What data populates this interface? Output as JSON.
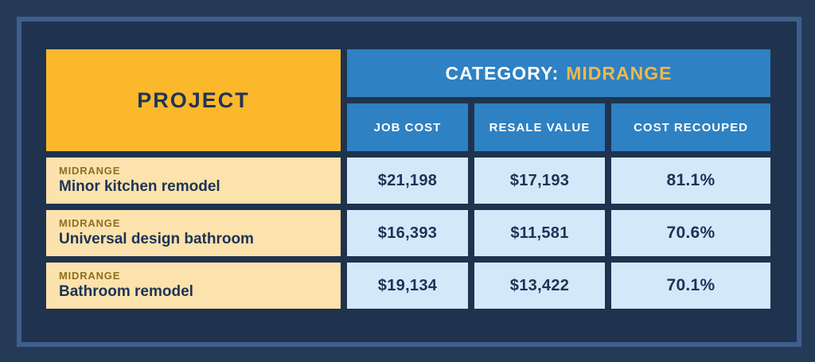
{
  "table": {
    "project_header": "PROJECT",
    "category": {
      "prefix": "CATEGORY:",
      "value": "MIDRANGE"
    },
    "columns": [
      "JOB COST",
      "RESALE VALUE",
      "COST RECOUPED"
    ],
    "rows": [
      {
        "category": "MIDRANGE",
        "project": "Minor kitchen remodel",
        "job_cost": "$21,198",
        "resale_value": "$17,193",
        "cost_recouped": "81.1%"
      },
      {
        "category": "MIDRANGE",
        "project": "Universal design bathroom",
        "job_cost": "$16,393",
        "resale_value": "$11,581",
        "cost_recouped": "70.6%"
      },
      {
        "category": "MIDRANGE",
        "project": "Bathroom remodel",
        "job_cost": "$19,134",
        "resale_value": "$13,422",
        "cost_recouped": "70.1%"
      }
    ]
  },
  "chart_data": {
    "type": "table",
    "title": "CATEGORY: MIDRANGE",
    "columns": [
      "PROJECT",
      "JOB COST",
      "RESALE VALUE",
      "COST RECOUPED"
    ],
    "rows": [
      {
        "category": "MIDRANGE",
        "project": "Minor kitchen remodel",
        "job_cost": 21198,
        "resale_value": 17193,
        "cost_recouped_pct": 81.1
      },
      {
        "category": "MIDRANGE",
        "project": "Universal design bathroom",
        "job_cost": 16393,
        "resale_value": 11581,
        "cost_recouped_pct": 70.6
      },
      {
        "category": "MIDRANGE",
        "project": "Bathroom remodel",
        "job_cost": 19134,
        "resale_value": 13422,
        "cost_recouped_pct": 70.1
      }
    ]
  },
  "colors": {
    "outer_background": "#243a56",
    "inner_background": "#1f334f",
    "frame_border": "#3f5e8c",
    "gold_header": "#fcb82b",
    "blue_header": "#2e81c3",
    "value_cell_blue": "#d3e9fa",
    "project_cell_cream": "#fce2ac",
    "navy_text": "#1d3356",
    "olive_label": "#8e6e1f",
    "gold_text": "#eeb84e",
    "white_text": "#ffffff"
  }
}
